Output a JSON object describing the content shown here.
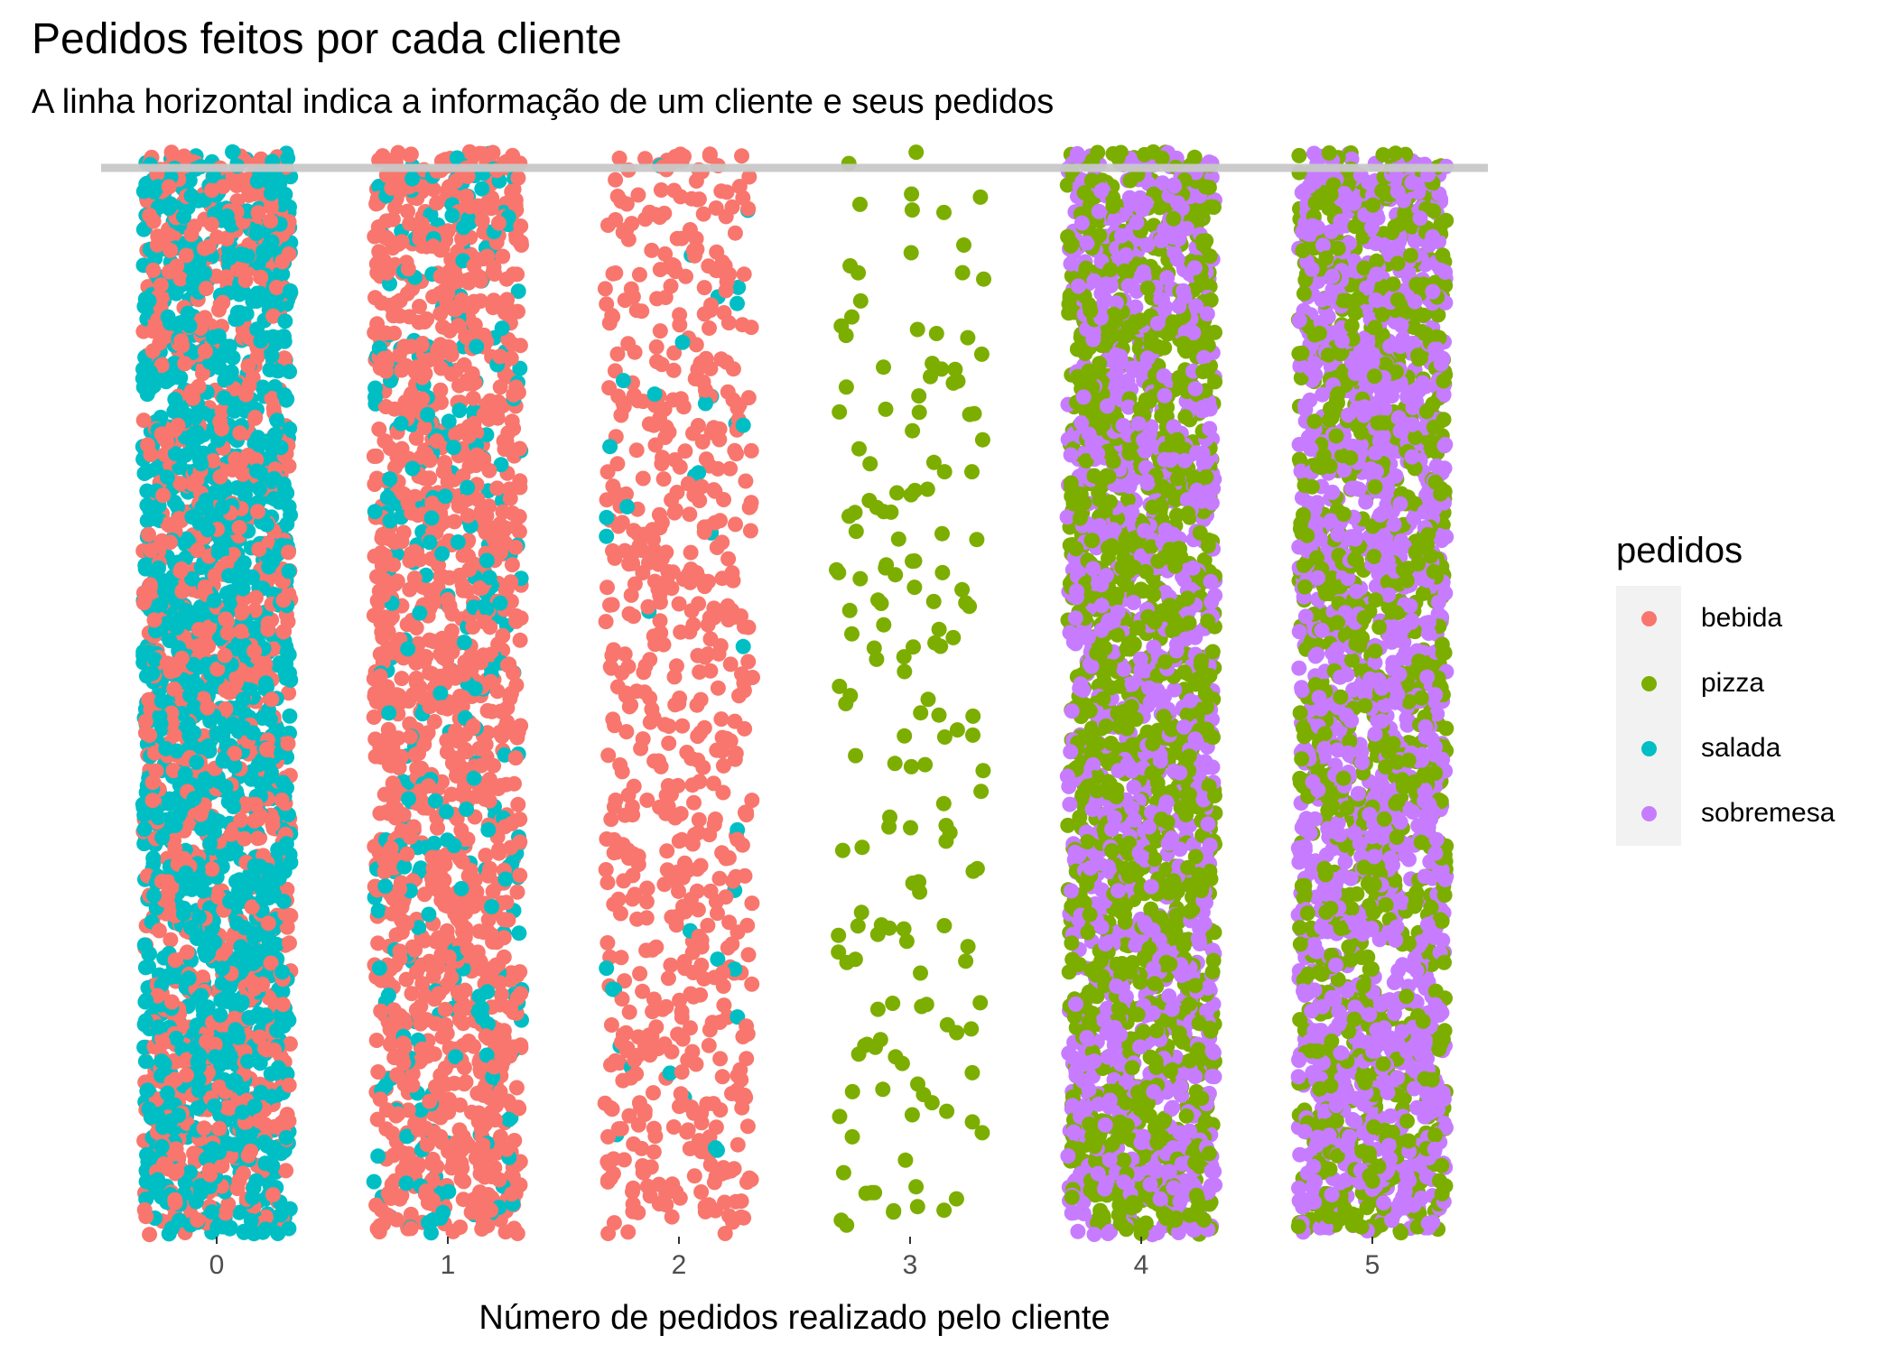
{
  "chart_data": {
    "type": "scatter",
    "title": "Pedidos feitos por cada cliente",
    "subtitle": "A linha horizontal indica a informação de um cliente e seus pedidos",
    "xlabel": "Número de pedidos realizado pelo cliente",
    "ylabel": "",
    "x_ticks": [
      "0",
      "1",
      "2",
      "3",
      "4",
      "5"
    ],
    "xlim": [
      -0.5,
      5.5
    ],
    "ylim": [
      0,
      1
    ],
    "grid": false,
    "legend": {
      "title": "pedidos",
      "placement": "right",
      "entries": [
        {
          "name": "bebida",
          "color": "#F8766D"
        },
        {
          "name": "pizza",
          "color": "#7CAE00"
        },
        {
          "name": "salada",
          "color": "#00BFC4"
        },
        {
          "name": "sobremesa",
          "color": "#C77CFF"
        }
      ]
    },
    "jitter_width": 0.32,
    "reference_line": {
      "y": 0.985,
      "color": "#c8c8c8"
    },
    "groups": [
      {
        "x": 0,
        "approx_points": 2600,
        "series_mix": {
          "salada": 0.62,
          "bebida": 0.38
        }
      },
      {
        "x": 1,
        "approx_points": 1700,
        "series_mix": {
          "bebida": 0.8,
          "salada": 0.2
        }
      },
      {
        "x": 2,
        "approx_points": 700,
        "series_mix": {
          "bebida": 0.94,
          "salada": 0.06
        }
      },
      {
        "x": 3,
        "approx_points": 170,
        "series_mix": {
          "pizza": 1.0
        }
      },
      {
        "x": 4,
        "approx_points": 2600,
        "series_mix": {
          "pizza": 0.55,
          "sobremesa": 0.45
        }
      },
      {
        "x": 5,
        "approx_points": 2600,
        "series_mix": {
          "sobremesa": 0.55,
          "pizza": 0.45
        }
      }
    ]
  }
}
